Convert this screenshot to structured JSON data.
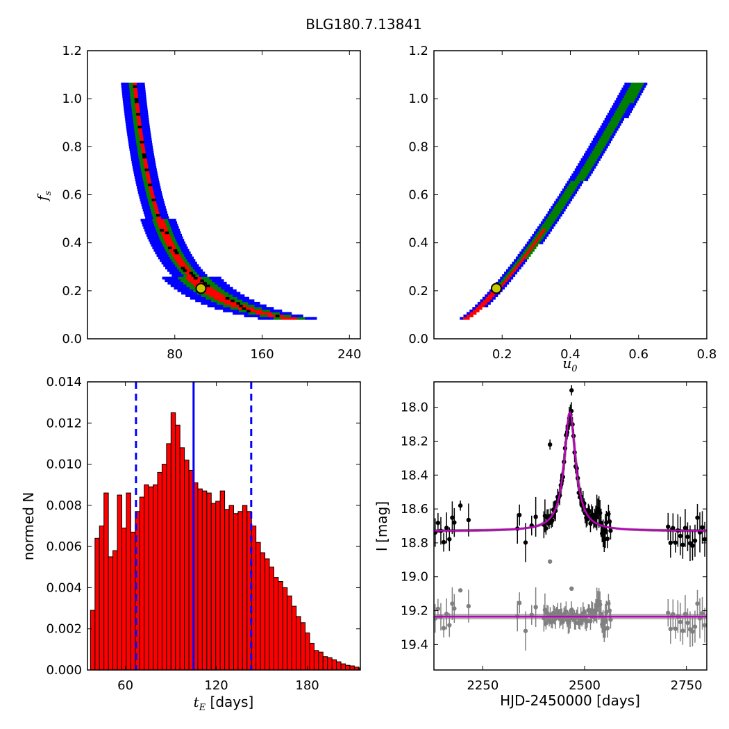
{
  "title": "BLG180.7.13841",
  "colors": {
    "blue": "#0000ff",
    "green": "#007f00",
    "red": "#ff0000",
    "black": "#000000",
    "gray": "#808080",
    "magenta": "#bf00bf",
    "marker": "#c8c800"
  },
  "chart_data": [
    {
      "id": "tE-fs",
      "type": "heatmap",
      "xlabel": "",
      "ylabel_main": "f",
      "ylabel_sub": "s",
      "xlim": [
        0,
        250
      ],
      "ylim": [
        0,
        1.2
      ],
      "xticks": [
        "80",
        "160",
        "240"
      ],
      "xtick_values": [
        80,
        160,
        240
      ],
      "yticks": [
        "0.0",
        "0.2",
        "0.4",
        "0.6",
        "0.8",
        "1.0",
        "1.2"
      ],
      "ytick_values": [
        0,
        0.2,
        0.4,
        0.6,
        0.8,
        1.0,
        1.2
      ],
      "best_fit": {
        "x": 104,
        "y": 0.21
      }
    },
    {
      "id": "u0-fs",
      "type": "heatmap",
      "xlabel_main": "u",
      "xlabel_sub": "0",
      "xlim": [
        0,
        0.8
      ],
      "ylim": [
        0,
        1.2
      ],
      "xticks": [
        "0.2",
        "0.4",
        "0.6",
        "0.8"
      ],
      "xtick_values": [
        0.2,
        0.4,
        0.6,
        0.8
      ],
      "yticks": [
        "0.0",
        "0.2",
        "0.4",
        "0.6",
        "0.8",
        "1.0",
        "1.2"
      ],
      "ytick_values": [
        0,
        0.2,
        0.4,
        0.6,
        0.8,
        1.0,
        1.2
      ],
      "best_fit": {
        "x": 0.183,
        "y": 0.21
      }
    },
    {
      "id": "tE-hist",
      "type": "bar",
      "xlabel_main": "t",
      "xlabel_sub": "E",
      "xlabel_rest": " [days]",
      "ylabel": "normed N",
      "xlim": [
        35,
        215
      ],
      "ylim": [
        0,
        0.014
      ],
      "xticks": [
        "60",
        "120",
        "180"
      ],
      "xtick_values": [
        60,
        120,
        180
      ],
      "yticks": [
        "0.000",
        "0.002",
        "0.004",
        "0.006",
        "0.008",
        "0.010",
        "0.012",
        "0.014"
      ],
      "ytick_values": [
        0,
        0.002,
        0.004,
        0.006,
        0.008,
        0.01,
        0.012,
        0.014
      ],
      "bin_start": 37,
      "bin_width": 2.95,
      "values": [
        0.0029,
        0.0064,
        0.007,
        0.0086,
        0.0055,
        0.0058,
        0.0085,
        0.0069,
        0.0086,
        0.0067,
        0.0077,
        0.0084,
        0.009,
        0.0089,
        0.009,
        0.0096,
        0.01,
        0.011,
        0.0125,
        0.0119,
        0.0108,
        0.0102,
        0.0097,
        0.0091,
        0.0088,
        0.0087,
        0.0086,
        0.0081,
        0.0082,
        0.0087,
        0.0078,
        0.008,
        0.0076,
        0.0077,
        0.008,
        0.0077,
        0.007,
        0.0062,
        0.0057,
        0.0054,
        0.005,
        0.0045,
        0.0043,
        0.004,
        0.0036,
        0.0031,
        0.0026,
        0.0023,
        0.0018,
        0.0013,
        0.00095,
        0.00087,
        0.00065,
        0.0006,
        0.0005,
        0.0004,
        0.0003,
        0.00023,
        0.0002,
        0.00014,
        0.0001,
        5e-05
      ],
      "median": 105,
      "interval": [
        67,
        143
      ]
    },
    {
      "id": "lightcurve",
      "type": "scatter",
      "xlabel": "HJD-2450000 [days]",
      "ylabel": "I [mag]",
      "xlim": [
        2130,
        2800
      ],
      "ylim": [
        19.55,
        17.85
      ],
      "xticks": [
        "2250",
        "2500",
        "2750"
      ],
      "xtick_values": [
        2250,
        2500,
        2750
      ],
      "yticks": [
        "18.0",
        "18.2",
        "18.4",
        "18.6",
        "18.8",
        "19.0",
        "19.2",
        "19.4"
      ],
      "ytick_values": [
        18.0,
        18.2,
        18.4,
        18.6,
        18.8,
        19.0,
        19.2,
        19.4
      ],
      "model": {
        "t0": 2464,
        "base": 18.73,
        "amp": 0.7,
        "width": 17,
        "base2": 19.235
      }
    }
  ]
}
